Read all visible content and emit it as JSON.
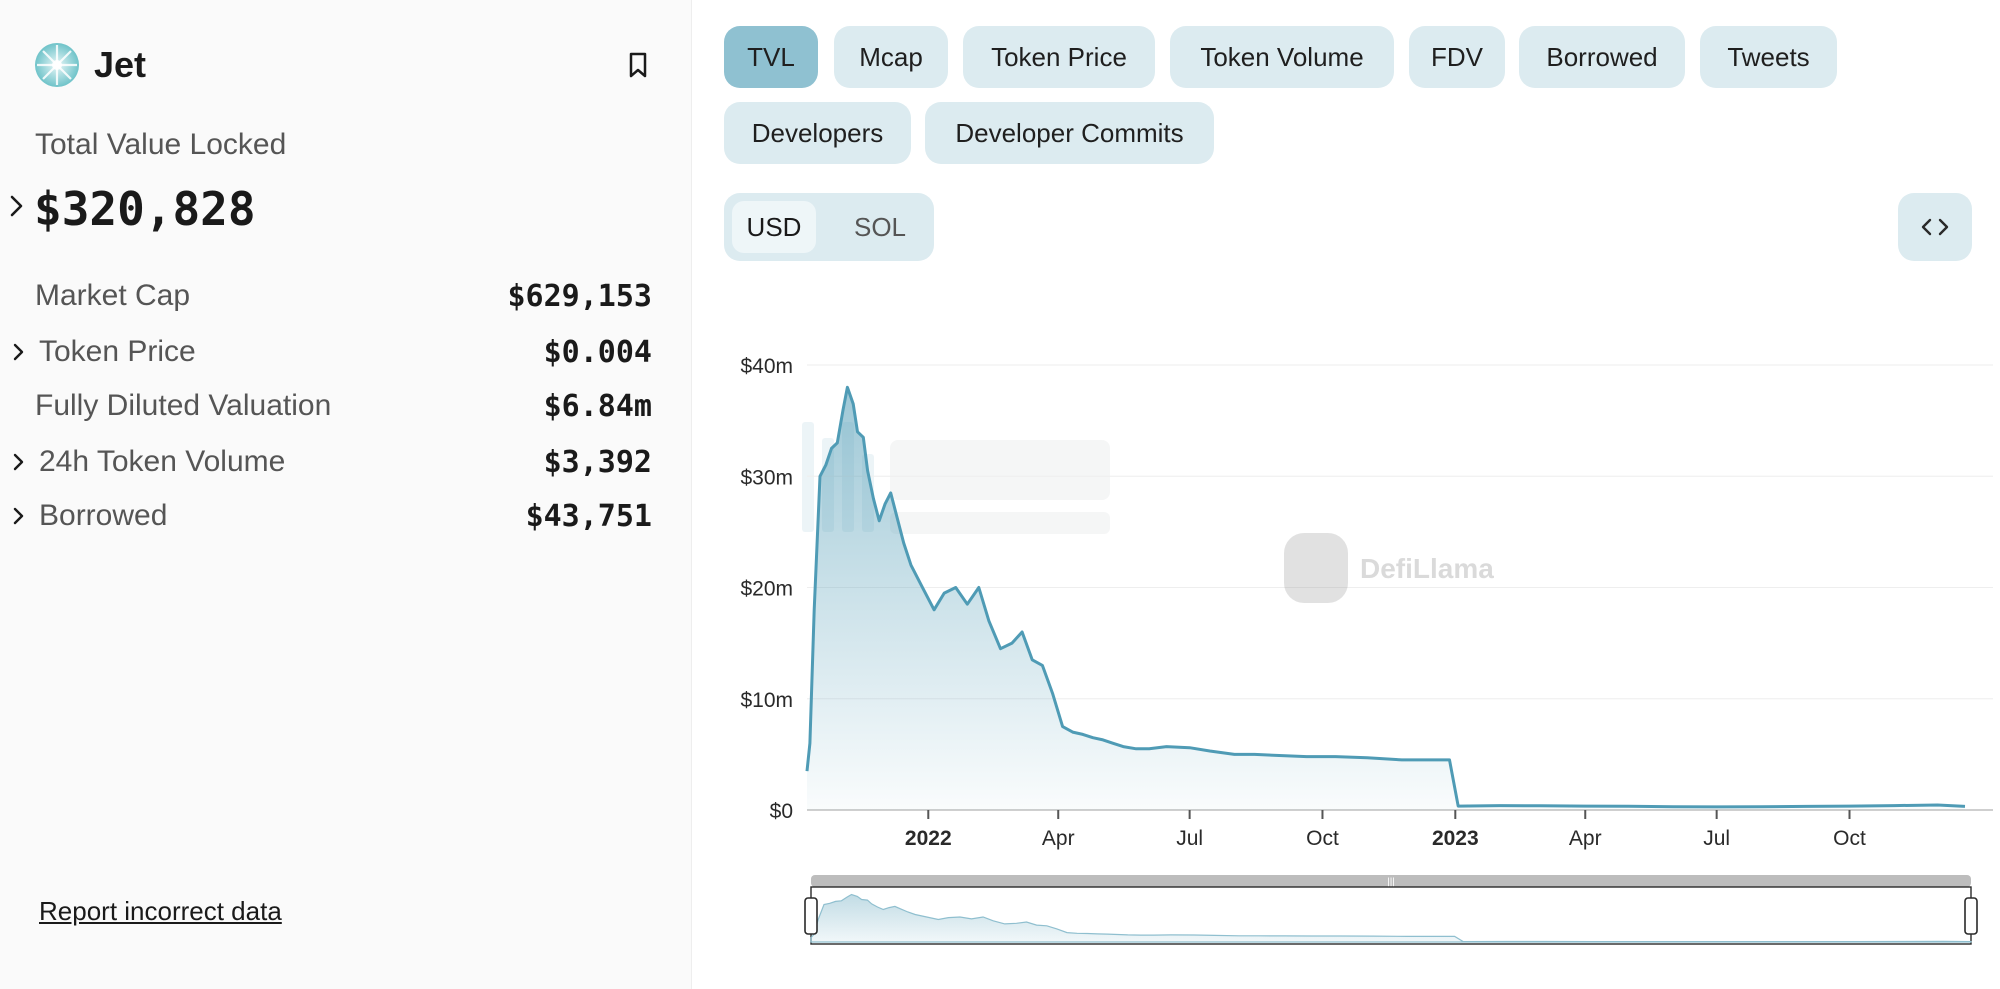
{
  "protocol": {
    "name": "Jet",
    "logo_icon": "jet-logo-icon",
    "bookmark_icon": "bookmark-icon"
  },
  "tvl": {
    "label": "Total Value Locked",
    "value": "$320,828"
  },
  "stats": [
    {
      "label": "Market Cap",
      "value": "$629,153",
      "expandable": false
    },
    {
      "label": "Token Price",
      "value": "$0.004",
      "expandable": true
    },
    {
      "label": "Fully Diluted Valuation",
      "value": "$6.84m",
      "expandable": false
    },
    {
      "label": "24h Token Volume",
      "value": "$3,392",
      "expandable": true
    },
    {
      "label": "Borrowed",
      "value": "$43,751",
      "expandable": true
    }
  ],
  "report_link": "Report incorrect data",
  "metric_tabs": [
    "TVL",
    "Mcap",
    "Token Price",
    "Token Volume",
    "FDV",
    "Borrowed",
    "Tweets",
    "Developers",
    "Developer Commits"
  ],
  "active_metric": "TVL",
  "denominations": [
    "USD",
    "SOL"
  ],
  "active_denomination": "USD",
  "embed_icon": "code-embed-icon",
  "colors": {
    "accent": "#4f9bb5",
    "pill_bg": "#dcebf0",
    "pill_active": "#8fc1d1"
  },
  "watermarks": {
    "defillama": "DefiLlama"
  },
  "chart_data": {
    "type": "area",
    "title": "",
    "xlabel": "",
    "ylabel": "",
    "ylim": [
      0,
      40000000
    ],
    "y_ticks": [
      "$0",
      "$10m",
      "$20m",
      "$30m",
      "$40m"
    ],
    "x_ticks": [
      "2022",
      "Apr",
      "Jul",
      "Oct",
      "2023",
      "Apr",
      "Jul",
      "Oct"
    ],
    "x_ticks_bold": [
      "2022",
      "2023"
    ],
    "x_range": [
      "2021-10-09",
      "2023-12-20"
    ],
    "grid": true,
    "series": [
      {
        "x": [
          "2021-10-09",
          "2021-10-11",
          "2021-10-14",
          "2021-10-18",
          "2021-10-22",
          "2021-10-26",
          "2021-10-30",
          "2021-11-03",
          "2021-11-06",
          "2021-11-10",
          "2021-11-13",
          "2021-11-17",
          "2021-11-20",
          "2021-11-24",
          "2021-11-28",
          "2021-12-02",
          "2021-12-06",
          "2021-12-10",
          "2021-12-15",
          "2021-12-20",
          "2021-12-28",
          "2022-01-05",
          "2022-01-12",
          "2022-01-20",
          "2022-01-28",
          "2022-02-05",
          "2022-02-12",
          "2022-02-20",
          "2022-02-28",
          "2022-03-07",
          "2022-03-14",
          "2022-03-21",
          "2022-03-28",
          "2022-04-04",
          "2022-04-11",
          "2022-04-18",
          "2022-04-25",
          "2022-05-02",
          "2022-05-09",
          "2022-05-16",
          "2022-05-25",
          "2022-06-03",
          "2022-06-15",
          "2022-07-01",
          "2022-07-15",
          "2022-08-01",
          "2022-08-15",
          "2022-09-01",
          "2022-09-20",
          "2022-10-10",
          "2022-11-01",
          "2022-11-25",
          "2022-12-15",
          "2022-12-28",
          "2023-01-03",
          "2023-02-01",
          "2023-03-01",
          "2023-04-01",
          "2023-05-01",
          "2023-06-01",
          "2023-07-01",
          "2023-08-01",
          "2023-09-01",
          "2023-10-01",
          "2023-11-01",
          "2023-12-01",
          "2023-12-20"
        ],
        "values": [
          3500000,
          6000000,
          18000000,
          30000000,
          31000000,
          32500000,
          33000000,
          36000000,
          38000000,
          36500000,
          34000000,
          33500000,
          30500000,
          28000000,
          26000000,
          27500000,
          28500000,
          26500000,
          24000000,
          22000000,
          20000000,
          18000000,
          19500000,
          20000000,
          18500000,
          20000000,
          17000000,
          14500000,
          15000000,
          16000000,
          13500000,
          13000000,
          10500000,
          7500000,
          7000000,
          6800000,
          6500000,
          6300000,
          6000000,
          5700000,
          5500000,
          5500000,
          5700000,
          5600000,
          5300000,
          5000000,
          5000000,
          4900000,
          4800000,
          4800000,
          4700000,
          4500000,
          4500000,
          4500000,
          350000,
          400000,
          380000,
          350000,
          330000,
          300000,
          280000,
          300000,
          320000,
          350000,
          400000,
          450000,
          320828
        ]
      }
    ]
  }
}
